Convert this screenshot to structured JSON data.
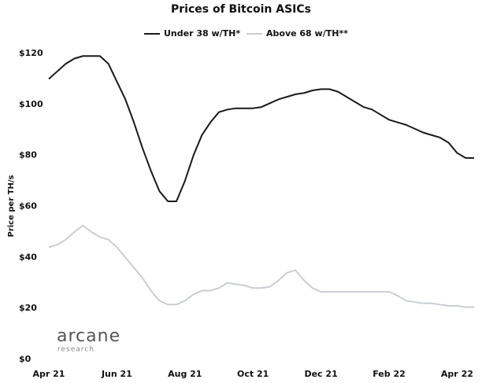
{
  "chart_data": {
    "type": "line",
    "title": "Prices of Bitcoin ASICs",
    "y_label": "Price per TH/s",
    "watermark": [
      "arcane",
      "research"
    ],
    "categories": [
      "Apr 21",
      null,
      null,
      null,
      null,
      null,
      null,
      null,
      "Jun 21",
      null,
      null,
      null,
      null,
      null,
      null,
      null,
      "Aug 21",
      null,
      null,
      null,
      null,
      null,
      null,
      null,
      "Oct 21",
      null,
      null,
      null,
      null,
      null,
      null,
      null,
      "Dec 21",
      null,
      null,
      null,
      null,
      null,
      null,
      null,
      "Feb 22",
      null,
      null,
      null,
      null,
      null,
      null,
      null,
      "Apr 22",
      null,
      null
    ],
    "series": [
      {
        "name": "Under 38 w/TH*",
        "color": "#1a1a1a",
        "values": [
          110,
          113,
          116,
          118,
          119,
          119,
          119,
          116,
          109,
          102,
          93,
          83,
          74,
          66,
          62,
          62,
          70,
          80,
          88,
          93,
          97,
          98,
          98.5,
          98.5,
          98.5,
          99,
          100.5,
          102,
          103,
          104,
          104.5,
          105.5,
          106,
          106,
          105,
          103,
          101,
          99,
          98,
          96,
          94,
          93,
          92,
          90.5,
          89,
          88,
          87,
          85,
          81,
          79,
          79
        ]
      },
      {
        "name": "Above 68 w/TH**",
        "color": "#c9ced3",
        "values": [
          44,
          45,
          47,
          50,
          52.5,
          50,
          48,
          47,
          44,
          40,
          36,
          32,
          27,
          23,
          21.5,
          21.5,
          23,
          25.5,
          27,
          27,
          28,
          30,
          29.5,
          29,
          28,
          28,
          28.5,
          31,
          34,
          35,
          31,
          28,
          26.5,
          26.5,
          26.5,
          26.5,
          26.5,
          26.5,
          26.5,
          26.5,
          26.5,
          25,
          23,
          22.5,
          22,
          22,
          21.5,
          21,
          21,
          20.5,
          20.5
        ]
      }
    ],
    "ylim": [
      0,
      120
    ],
    "yticks": [
      {
        "value": 0,
        "label": "$0"
      },
      {
        "value": 20,
        "label": "$20"
      },
      {
        "value": 40,
        "label": "$40"
      },
      {
        "value": 60,
        "label": "$60"
      },
      {
        "value": 80,
        "label": "$80"
      },
      {
        "value": 100,
        "label": "$100"
      },
      {
        "value": 120,
        "label": "$120"
      }
    ],
    "grid": false
  }
}
